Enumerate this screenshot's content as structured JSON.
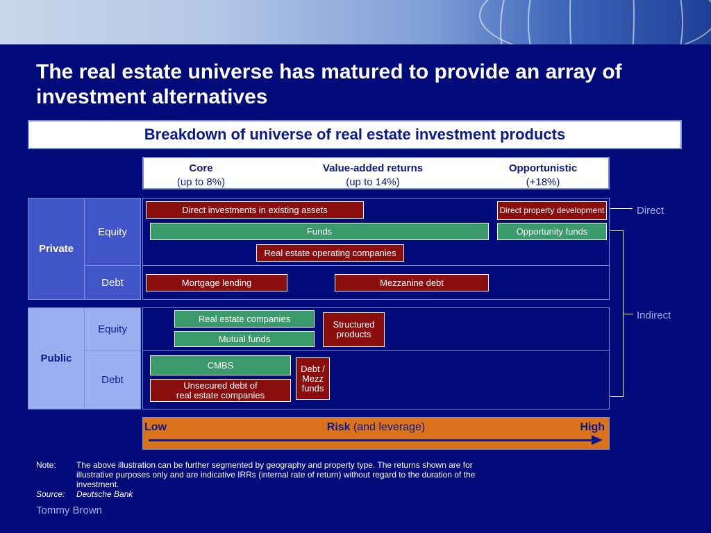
{
  "title": "The real estate universe has matured to provide an array of investment alternatives",
  "subtitle": "Breakdown of universe of real estate investment products",
  "returns": [
    {
      "heading": "Core",
      "value": "(up to 8%)"
    },
    {
      "heading": "Value-added returns",
      "value": "(up to 14%)"
    },
    {
      "heading": "Opportunistic",
      "value": "(+18%)"
    }
  ],
  "markets": {
    "private": "Private",
    "public": "Public"
  },
  "types": {
    "equity": "Equity",
    "debt": "Debt"
  },
  "products": {
    "direct_existing": "Direct investments in existing assets",
    "direct_property_dev": "Direct property development",
    "funds": "Funds",
    "opportunity_funds": "Opportunity funds",
    "reoc": "Real estate operating companies",
    "mortgage_lending": "Mortgage lending",
    "mezzanine_debt": "Mezzanine debt",
    "re_companies": "Real estate companies",
    "mutual_funds": "Mutual funds",
    "structured_products": "Structured products",
    "cmbs": "CMBS",
    "unsecured_debt_l1": "Unsecured debt of",
    "unsecured_debt_l2": "real estate companies",
    "debt_mezz_funds": "Debt / Mezz funds"
  },
  "product_colors": {
    "red": "#8b0e0e",
    "green": "#3a9a6c"
  },
  "access": {
    "direct": "Direct",
    "indirect": "Indirect"
  },
  "risk": {
    "low": "Low",
    "label_bold": "Risk",
    "label_rest": " (and leverage)",
    "high": "High"
  },
  "notes": {
    "note_key": "Note:",
    "note_text": "The above illustration can be further segmented by geography and property type. The returns shown are for illustrative purposes only and are indicative IRRs (internal rate of return) without regard to the duration of the investment.",
    "source_key": "Source:",
    "source_text": "Deutsche Bank"
  },
  "author": "Tommy Brown"
}
